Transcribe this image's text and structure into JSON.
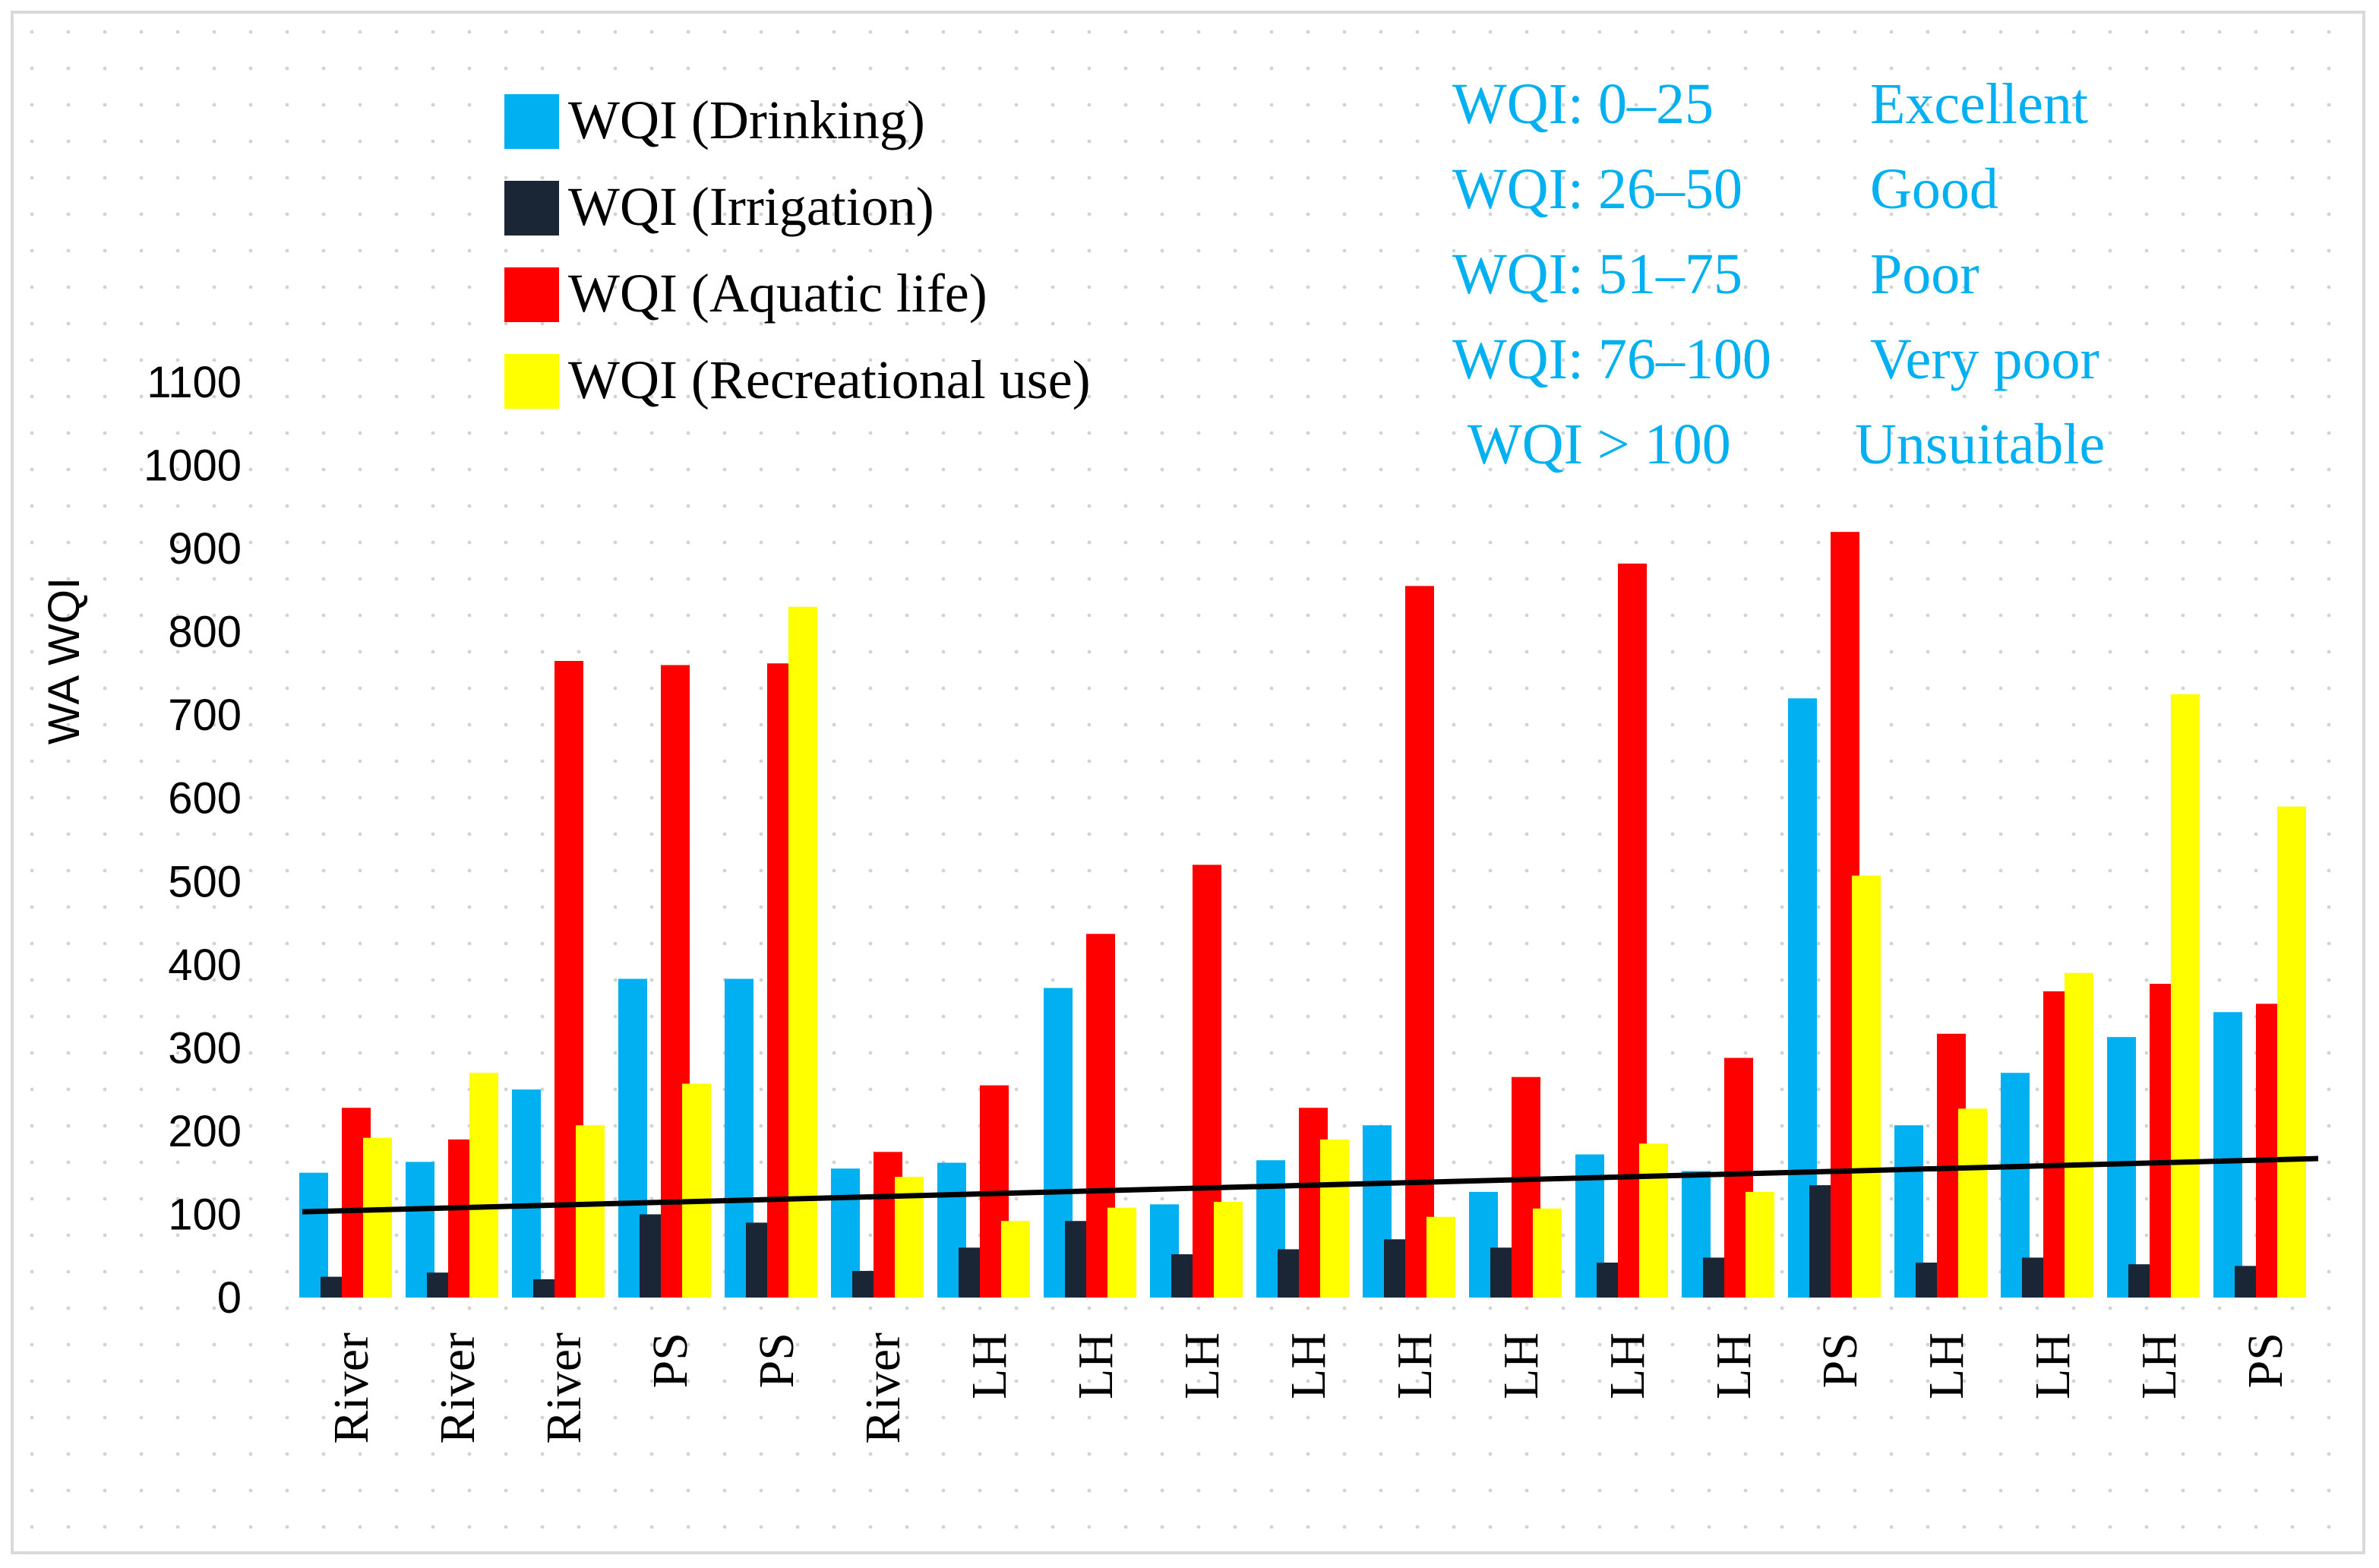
{
  "chart_data": {
    "type": "bar",
    "title": "",
    "xlabel": "",
    "ylabel": "WA WQI",
    "ylim": [
      0,
      1100
    ],
    "yticks": [
      "0",
      "100",
      "200",
      "300",
      "400",
      "500",
      "600",
      "700",
      "800",
      "900",
      "1000",
      "1100"
    ],
    "grid": false,
    "legend_position": "top-left",
    "categories": [
      "River",
      "River",
      "River",
      "PS",
      "PS",
      "River",
      "LH",
      "LH",
      "LH",
      "LH",
      "LH",
      "LH",
      "LH",
      "LH",
      "PS",
      "LH",
      "LH",
      "LH",
      "PS"
    ],
    "series": [
      {
        "name": "WQI (Drinking)",
        "color": "#00b0f0",
        "values": [
          150,
          163,
          250,
          383,
          383,
          155,
          162,
          372,
          112,
          165,
          207,
          127,
          172,
          152,
          720,
          207,
          270,
          313,
          343
        ]
      },
      {
        "name": "WQI (Irrigation)",
        "color": "#1a2535",
        "values": [
          25,
          30,
          22,
          100,
          90,
          32,
          60,
          92,
          52,
          58,
          70,
          60,
          42,
          48,
          135,
          42,
          48,
          40,
          38
        ]
      },
      {
        "name": "WQI (Aquatic life)",
        "color": "#ff0000",
        "values": [
          228,
          190,
          765,
          760,
          762,
          175,
          255,
          437,
          520,
          228,
          855,
          265,
          882,
          288,
          920,
          317,
          368,
          377,
          353
        ]
      },
      {
        "name": "WQI (Recreational use)",
        "color": "#ffff00",
        "values": [
          192,
          270,
          207,
          257,
          830,
          145,
          92,
          108,
          115,
          190,
          97,
          107,
          185,
          127,
          507,
          227,
          390,
          725,
          590
        ]
      }
    ],
    "trendline": {
      "color": "#000000",
      "start": 103,
      "end": 167
    },
    "annotations": {
      "color": "#00b0f0",
      "rows": [
        {
          "range": "WQI: 0–25",
          "label": "Excellent"
        },
        {
          "range": "WQI: 26–50",
          "label": "Good"
        },
        {
          "range": "WQI: 51–75",
          "label": "Poor"
        },
        {
          "range": "WQI: 76–100",
          "label": "Very poor"
        },
        {
          "range": "WQI > 100",
          "label": "Unsuitable"
        }
      ]
    }
  }
}
